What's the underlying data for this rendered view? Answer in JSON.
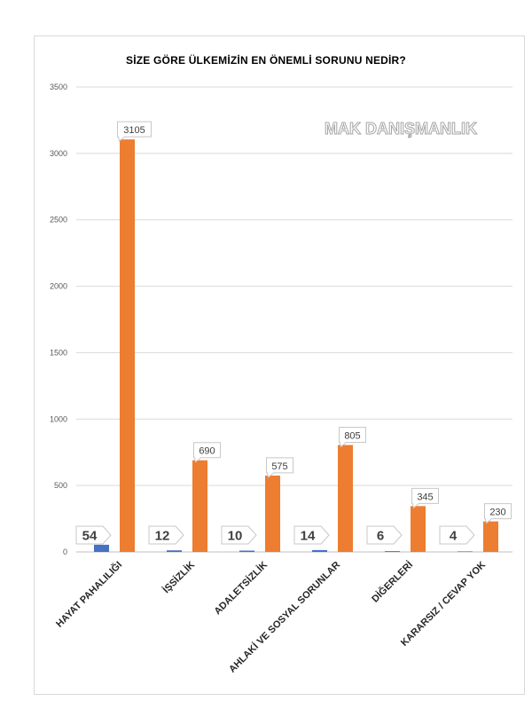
{
  "chart_data": {
    "type": "bar",
    "title": "SİZE GÖRE ÜLKEMİZİN EN ÖNEMLİ SORUNU NEDİR?",
    "watermark": "MAK DANIŞMANLIK",
    "categories": [
      "HAYAT PAHALILIĞI",
      "İŞSİZLİK",
      "ADALETSİZLİK",
      "AHLAKİ VE SOSYAL SORUNLAR",
      "DİĞERLERİ",
      "KARARSIZ / CEVAP YOK"
    ],
    "series": [
      {
        "values": [
          54,
          12,
          10,
          14,
          6,
          4
        ],
        "color": "#4472c4"
      },
      {
        "values": [
          3105,
          690,
          575,
          805,
          345,
          230
        ],
        "color": "#ed7d31"
      }
    ],
    "ylim": [
      0,
      3500
    ],
    "yticks": [
      0,
      500,
      1000,
      1500,
      2000,
      2500,
      3000,
      3500
    ],
    "grid": true,
    "legend": "none"
  }
}
